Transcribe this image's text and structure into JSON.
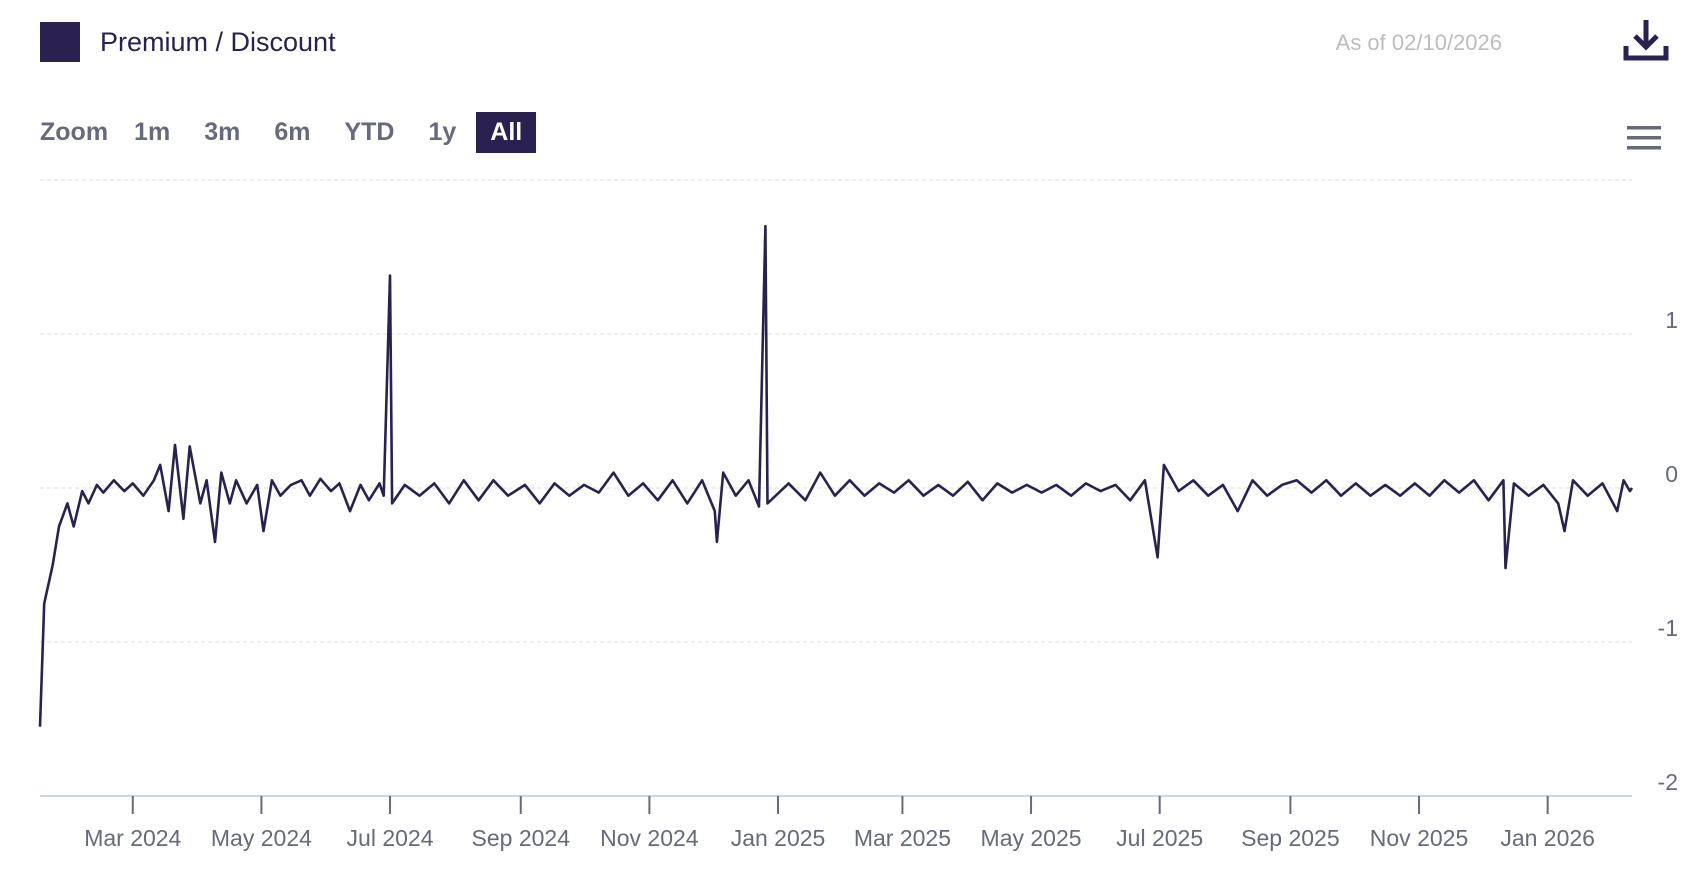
{
  "header": {
    "legend_label": "Premium / Discount",
    "as_of": "As of 02/10/2026",
    "download_icon": "download-icon",
    "menu_icon": "hamburger-menu-icon"
  },
  "zoom": {
    "label": "Zoom",
    "buttons": [
      "1m",
      "3m",
      "6m",
      "YTD",
      "1y",
      "All"
    ],
    "active": "All"
  },
  "colors": {
    "series": "#2b2150",
    "grid": "#dcdcdc",
    "axis_text": "#666a7a",
    "as_of_text": "#bcbcbc"
  },
  "chart_data": {
    "type": "line",
    "title": "",
    "xlabel": "",
    "ylabel": "",
    "ylim": [
      -2,
      2
    ],
    "yticks": [
      1,
      0,
      -1,
      -2
    ],
    "ytick_labels": [
      "1",
      "0",
      "-1",
      "-2"
    ],
    "xlim": [
      "2024-01-17",
      "2026-02-10"
    ],
    "xticks": [
      "2024-03-01",
      "2024-05-01",
      "2024-07-01",
      "2024-09-01",
      "2024-11-01",
      "2025-01-01",
      "2025-03-01",
      "2025-05-01",
      "2025-07-01",
      "2025-09-01",
      "2025-11-01",
      "2026-01-01"
    ],
    "xtick_labels": [
      "Mar 2024",
      "May 2024",
      "Jul 2024",
      "Sep 2024",
      "Nov 2024",
      "Jan 2025",
      "Mar 2025",
      "May 2025",
      "Jul 2025",
      "Sep 2025",
      "Nov 2025",
      "Jan 2026"
    ],
    "grid": true,
    "legend": "top-left",
    "series": [
      {
        "name": "Premium / Discount",
        "points": [
          [
            "2024-01-17",
            -1.55
          ],
          [
            "2024-01-19",
            -0.75
          ],
          [
            "2024-01-23",
            -0.5
          ],
          [
            "2024-01-26",
            -0.25
          ],
          [
            "2024-01-30",
            -0.1
          ],
          [
            "2024-02-02",
            -0.25
          ],
          [
            "2024-02-06",
            -0.02
          ],
          [
            "2024-02-09",
            -0.1
          ],
          [
            "2024-02-13",
            0.02
          ],
          [
            "2024-02-16",
            -0.03
          ],
          [
            "2024-02-21",
            0.05
          ],
          [
            "2024-02-26",
            -0.02
          ],
          [
            "2024-03-01",
            0.03
          ],
          [
            "2024-03-06",
            -0.05
          ],
          [
            "2024-03-11",
            0.05
          ],
          [
            "2024-03-14",
            0.15
          ],
          [
            "2024-03-18",
            -0.15
          ],
          [
            "2024-03-21",
            0.28
          ],
          [
            "2024-03-25",
            -0.2
          ],
          [
            "2024-03-28",
            0.27
          ],
          [
            "2024-04-02",
            -0.1
          ],
          [
            "2024-04-05",
            0.05
          ],
          [
            "2024-04-09",
            -0.35
          ],
          [
            "2024-04-12",
            0.1
          ],
          [
            "2024-04-16",
            -0.1
          ],
          [
            "2024-04-19",
            0.05
          ],
          [
            "2024-04-24",
            -0.1
          ],
          [
            "2024-04-29",
            0.02
          ],
          [
            "2024-05-02",
            -0.28
          ],
          [
            "2024-05-06",
            0.05
          ],
          [
            "2024-05-10",
            -0.05
          ],
          [
            "2024-05-15",
            0.02
          ],
          [
            "2024-05-20",
            0.05
          ],
          [
            "2024-05-24",
            -0.05
          ],
          [
            "2024-05-29",
            0.06
          ],
          [
            "2024-06-03",
            -0.02
          ],
          [
            "2024-06-07",
            0.03
          ],
          [
            "2024-06-12",
            -0.15
          ],
          [
            "2024-06-17",
            0.02
          ],
          [
            "2024-06-21",
            -0.08
          ],
          [
            "2024-06-26",
            0.03
          ],
          [
            "2024-06-28",
            -0.05
          ],
          [
            "2024-07-01",
            1.38
          ],
          [
            "2024-07-02",
            -0.1
          ],
          [
            "2024-07-08",
            0.02
          ],
          [
            "2024-07-15",
            -0.05
          ],
          [
            "2024-07-22",
            0.03
          ],
          [
            "2024-07-29",
            -0.1
          ],
          [
            "2024-08-05",
            0.05
          ],
          [
            "2024-08-12",
            -0.08
          ],
          [
            "2024-08-19",
            0.05
          ],
          [
            "2024-08-26",
            -0.05
          ],
          [
            "2024-09-03",
            0.02
          ],
          [
            "2024-09-10",
            -0.1
          ],
          [
            "2024-09-17",
            0.03
          ],
          [
            "2024-09-24",
            -0.05
          ],
          [
            "2024-10-01",
            0.02
          ],
          [
            "2024-10-08",
            -0.03
          ],
          [
            "2024-10-15",
            0.1
          ],
          [
            "2024-10-22",
            -0.05
          ],
          [
            "2024-10-29",
            0.03
          ],
          [
            "2024-11-05",
            -0.08
          ],
          [
            "2024-11-12",
            0.05
          ],
          [
            "2024-11-19",
            -0.1
          ],
          [
            "2024-11-26",
            0.05
          ],
          [
            "2024-12-02",
            -0.15
          ],
          [
            "2024-12-03",
            -0.35
          ],
          [
            "2024-12-06",
            0.1
          ],
          [
            "2024-12-12",
            -0.05
          ],
          [
            "2024-12-18",
            0.05
          ],
          [
            "2024-12-23",
            -0.12
          ],
          [
            "2024-12-26",
            1.7
          ],
          [
            "2024-12-27",
            -0.1
          ],
          [
            "2025-01-06",
            0.03
          ],
          [
            "2025-01-14",
            -0.08
          ],
          [
            "2025-01-21",
            0.1
          ],
          [
            "2025-01-28",
            -0.05
          ],
          [
            "2025-02-04",
            0.05
          ],
          [
            "2025-02-11",
            -0.05
          ],
          [
            "2025-02-18",
            0.03
          ],
          [
            "2025-02-25",
            -0.03
          ],
          [
            "2025-03-04",
            0.05
          ],
          [
            "2025-03-11",
            -0.05
          ],
          [
            "2025-03-18",
            0.02
          ],
          [
            "2025-03-25",
            -0.05
          ],
          [
            "2025-04-01",
            0.04
          ],
          [
            "2025-04-08",
            -0.08
          ],
          [
            "2025-04-15",
            0.03
          ],
          [
            "2025-04-22",
            -0.03
          ],
          [
            "2025-04-29",
            0.02
          ],
          [
            "2025-05-06",
            -0.03
          ],
          [
            "2025-05-13",
            0.02
          ],
          [
            "2025-05-20",
            -0.05
          ],
          [
            "2025-05-27",
            0.03
          ],
          [
            "2025-06-03",
            -0.02
          ],
          [
            "2025-06-10",
            0.02
          ],
          [
            "2025-06-17",
            -0.08
          ],
          [
            "2025-06-24",
            0.05
          ],
          [
            "2025-06-30",
            -0.45
          ],
          [
            "2025-07-03",
            0.15
          ],
          [
            "2025-07-10",
            -0.02
          ],
          [
            "2025-07-17",
            0.05
          ],
          [
            "2025-07-24",
            -0.05
          ],
          [
            "2025-07-31",
            0.02
          ],
          [
            "2025-08-07",
            -0.15
          ],
          [
            "2025-08-14",
            0.05
          ],
          [
            "2025-08-21",
            -0.05
          ],
          [
            "2025-08-28",
            0.02
          ],
          [
            "2025-09-04",
            0.05
          ],
          [
            "2025-09-11",
            -0.03
          ],
          [
            "2025-09-18",
            0.05
          ],
          [
            "2025-09-25",
            -0.05
          ],
          [
            "2025-10-02",
            0.03
          ],
          [
            "2025-10-09",
            -0.05
          ],
          [
            "2025-10-16",
            0.02
          ],
          [
            "2025-10-23",
            -0.05
          ],
          [
            "2025-10-30",
            0.03
          ],
          [
            "2025-11-06",
            -0.05
          ],
          [
            "2025-11-13",
            0.05
          ],
          [
            "2025-11-20",
            -0.03
          ],
          [
            "2025-11-27",
            0.05
          ],
          [
            "2025-12-04",
            -0.08
          ],
          [
            "2025-12-11",
            0.05
          ],
          [
            "2025-12-12",
            -0.52
          ],
          [
            "2025-12-16",
            0.03
          ],
          [
            "2025-12-23",
            -0.05
          ],
          [
            "2025-12-30",
            0.02
          ],
          [
            "2026-01-06",
            -0.1
          ],
          [
            "2026-01-09",
            -0.28
          ],
          [
            "2026-01-13",
            0.05
          ],
          [
            "2026-01-20",
            -0.05
          ],
          [
            "2026-01-27",
            0.03
          ],
          [
            "2026-02-03",
            -0.15
          ],
          [
            "2026-02-06",
            0.05
          ],
          [
            "2026-02-09",
            -0.02
          ],
          [
            "2026-02-10",
            0.0
          ]
        ]
      }
    ]
  }
}
